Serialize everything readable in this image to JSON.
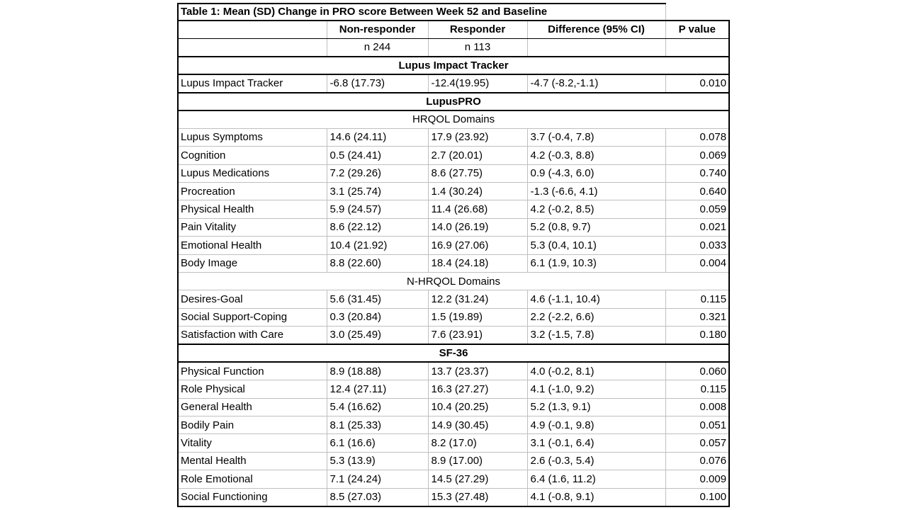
{
  "table": {
    "title": "Table 1: Mean (SD) Change in PRO score Between Week 52 and Baseline",
    "columns": [
      "",
      "Non-responder",
      "Responder",
      "Difference (95% CI)",
      "P value"
    ],
    "n_row": [
      "",
      "n 244",
      "n 113",
      "",
      ""
    ],
    "rows": [
      {
        "type": "section",
        "label": "Lupus Impact Tracker"
      },
      {
        "type": "data",
        "cells": [
          "Lupus Impact Tracker",
          "-6.8 (17.73)",
          "-12.4(19.95)",
          "-4.7 (-8.2,-1.1)",
          "0.010"
        ]
      },
      {
        "type": "section",
        "label": "LupusPRO"
      },
      {
        "type": "subsection",
        "label": "HRQOL Domains"
      },
      {
        "type": "data",
        "cells": [
          "Lupus Symptoms",
          "14.6 (24.11)",
          "17.9 (23.92)",
          "3.7 (-0.4, 7.8)",
          "0.078"
        ]
      },
      {
        "type": "data",
        "cells": [
          "Cognition",
          "0.5 (24.41)",
          "2.7 (20.01)",
          "4.2 (-0.3, 8.8)",
          "0.069"
        ]
      },
      {
        "type": "data",
        "cells": [
          "Lupus Medications",
          "7.2 (29.26)",
          "8.6 (27.75)",
          "0.9 (-4.3, 6.0)",
          "0.740"
        ]
      },
      {
        "type": "data",
        "cells": [
          "Procreation",
          "3.1 (25.74)",
          "1.4 (30.24)",
          "-1.3 (-6.6, 4.1)",
          "0.640"
        ]
      },
      {
        "type": "data",
        "cells": [
          "Physical Health",
          "5.9 (24.57)",
          "11.4 (26.68)",
          "4.2 (-0.2, 8.5)",
          "0.059"
        ]
      },
      {
        "type": "data",
        "cells": [
          "Pain Vitality",
          "8.6 (22.12)",
          "14.0 (26.19)",
          "5.2 (0.8, 9.7)",
          "0.021"
        ]
      },
      {
        "type": "data",
        "cells": [
          "Emotional Health",
          "10.4 (21.92)",
          "16.9 (27.06)",
          "5.3 (0.4, 10.1)",
          "0.033"
        ]
      },
      {
        "type": "data",
        "cells": [
          "Body Image",
          "8.8 (22.60)",
          "18.4 (24.18)",
          "6.1 (1.9, 10.3)",
          "0.004"
        ]
      },
      {
        "type": "subsection",
        "label": "N-HRQOL Domains"
      },
      {
        "type": "data",
        "cells": [
          "Desires-Goal",
          "5.6 (31.45)",
          "12.2 (31.24)",
          "4.6 (-1.1, 10.4)",
          "0.115"
        ]
      },
      {
        "type": "data",
        "cells": [
          "Social Support-Coping",
          "0.3 (20.84)",
          "1.5 (19.89)",
          "2.2 (-2.2, 6.6)",
          "0.321"
        ]
      },
      {
        "type": "data",
        "cells": [
          "Satisfaction with Care",
          "3.0 (25.49)",
          "7.6 (23.91)",
          "3.2 (-1.5, 7.8)",
          "0.180"
        ]
      },
      {
        "type": "section",
        "label": "SF-36"
      },
      {
        "type": "data",
        "cells": [
          "Physical Function",
          "8.9 (18.88)",
          "13.7 (23.37)",
          "4.0 (-0.2, 8.1)",
          "0.060"
        ]
      },
      {
        "type": "data",
        "cells": [
          "Role Physical",
          "12.4 (27.11)",
          "16.3 (27.27)",
          "4.1 (-1.0, 9.2)",
          "0.115"
        ]
      },
      {
        "type": "data",
        "cells": [
          "General Health",
          "5.4 (16.62)",
          "10.4 (20.25)",
          "5.2 (1.3, 9.1)",
          "0.008"
        ]
      },
      {
        "type": "data",
        "cells": [
          "Bodily Pain",
          "8.1 (25.33)",
          "14.9 (30.45)",
          "4.9 (-0.1, 9.8)",
          "0.051"
        ]
      },
      {
        "type": "data",
        "cells": [
          "Vitality",
          "6.1 (16.6)",
          "8.2 (17.0)",
          "3.1 (-0.1, 6.4)",
          "0.057"
        ]
      },
      {
        "type": "data",
        "cells": [
          "Mental Health",
          "5.3 (13.9)",
          "8.9 (17.00)",
          "2.6 (-0.3, 5.4)",
          "0.076"
        ]
      },
      {
        "type": "data",
        "cells": [
          "Role Emotional",
          "7.1 (24.24)",
          "14.5 (27.29)",
          "6.4 (1.6, 11.2)",
          "0.009"
        ]
      },
      {
        "type": "data",
        "cells": [
          "Social Functioning",
          "8.5 (27.03)",
          "15.3 (27.48)",
          "4.1 (-0.8, 9.1)",
          "0.100"
        ]
      }
    ],
    "colors": {
      "text": "#000000",
      "background": "#ffffff",
      "thick_border": "#000000",
      "grid_border": "#bfbfbf"
    }
  }
}
